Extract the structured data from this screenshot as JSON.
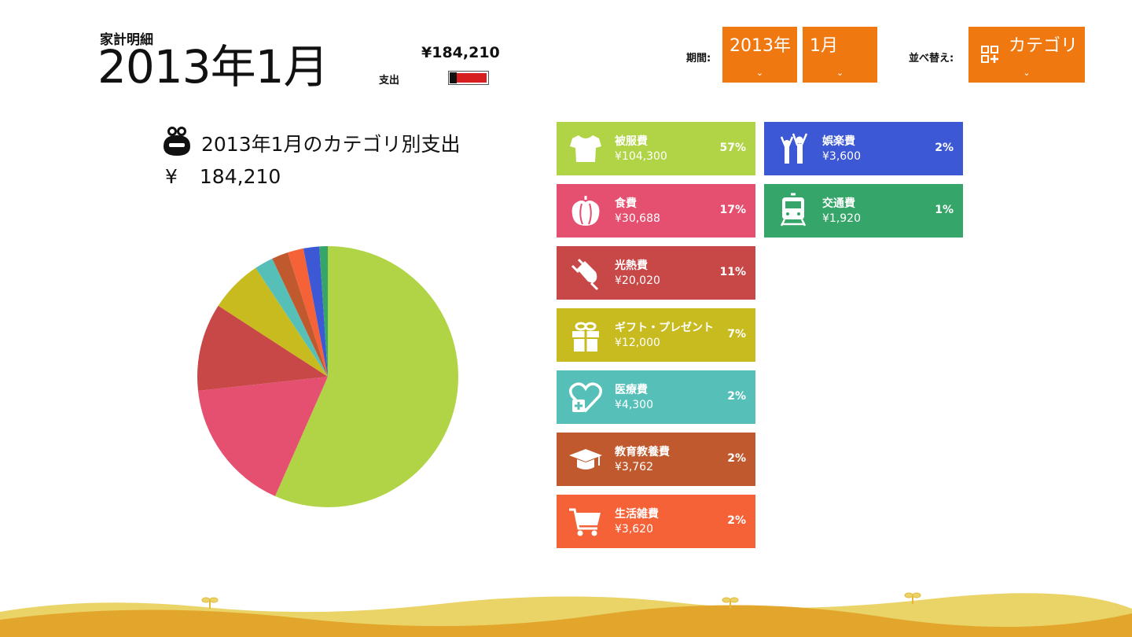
{
  "header": {
    "subtitle": "家計明細",
    "month_title": "2013年1月",
    "total_amount": "¥184,210",
    "expense_label": "支出",
    "expense_bar_level": 0.8
  },
  "controls": {
    "period_label": "期間:",
    "year_value": "2013年",
    "month_value": "1月",
    "sort_label": "並べ替え:",
    "sort_value": "カテゴリ",
    "chevron": "⌄"
  },
  "chart_header": {
    "title": "2013年1月のカテゴリ別支出",
    "currency": "¥",
    "total": "184,210",
    "icon": "purse-icon"
  },
  "chart_data": {
    "type": "pie",
    "title": "2013年1月のカテゴリ別支出",
    "total": 184210,
    "slices": [
      {
        "label": "被服費",
        "value": 104300,
        "color": "#b0d445"
      },
      {
        "label": "食費",
        "value": 30688,
        "color": "#e55070"
      },
      {
        "label": "光熱費",
        "value": 20020,
        "color": "#c84848"
      },
      {
        "label": "ギフト・プレゼント",
        "value": 12000,
        "color": "#c8bb20"
      },
      {
        "label": "医療費",
        "value": 4300,
        "color": "#56c0b8"
      },
      {
        "label": "教育教養費",
        "value": 3762,
        "color": "#c05a2e"
      },
      {
        "label": "生活雑費",
        "value": 3620,
        "color": "#f56238"
      },
      {
        "label": "娯楽費",
        "value": 3600,
        "color": "#3c58d4"
      },
      {
        "label": "交通費",
        "value": 1920,
        "color": "#35a56a"
      }
    ]
  },
  "categories": [
    {
      "name": "被服費",
      "amount": "¥104,300",
      "percent": "57%",
      "color": "#b0d445",
      "icon": "shirt-icon"
    },
    {
      "name": "食費",
      "amount": "¥30,688",
      "percent": "17%",
      "color": "#e55070",
      "icon": "pepper-icon"
    },
    {
      "name": "光熱費",
      "amount": "¥20,020",
      "percent": "11%",
      "color": "#c84848",
      "icon": "plug-icon"
    },
    {
      "name": "ギフト・プレゼント",
      "amount": "¥12,000",
      "percent": "7%",
      "color": "#c8bb20",
      "icon": "gift-icon"
    },
    {
      "name": "医療費",
      "amount": "¥4,300",
      "percent": "2%",
      "color": "#56c0b8",
      "icon": "medical-heart-icon"
    },
    {
      "name": "教育教養費",
      "amount": "¥3,762",
      "percent": "2%",
      "color": "#c05a2e",
      "icon": "graduation-cap-icon"
    },
    {
      "name": "生活雑費",
      "amount": "¥3,620",
      "percent": "2%",
      "color": "#f56238",
      "icon": "shopping-cart-icon"
    },
    {
      "name": "娯楽費",
      "amount": "¥3,600",
      "percent": "2%",
      "color": "#3c58d4",
      "icon": "people-cheering-icon"
    },
    {
      "name": "交通費",
      "amount": "¥1,920",
      "percent": "1%",
      "color": "#35a56a",
      "icon": "train-icon"
    }
  ]
}
